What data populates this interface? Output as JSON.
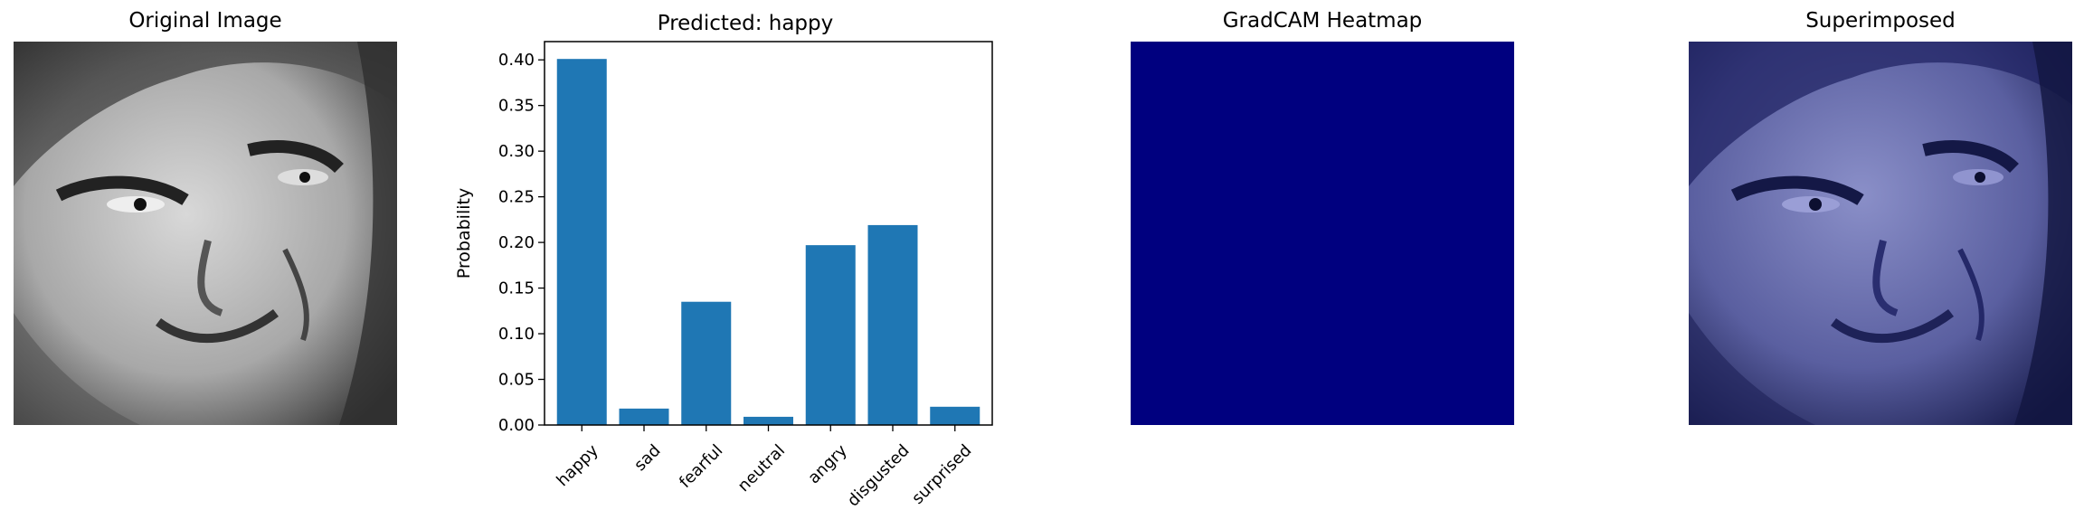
{
  "panels": {
    "original": {
      "title": "Original Image"
    },
    "heatmap": {
      "title": "GradCAM Heatmap",
      "color": "#00007f"
    },
    "superimposed": {
      "title": "Superimposed",
      "tint": "#2a2f8a"
    }
  },
  "chart_data": {
    "type": "bar",
    "title": "Predicted: happy",
    "xlabel": "",
    "ylabel": "Probability",
    "categories": [
      "happy",
      "sad",
      "fearful",
      "neutral",
      "angry",
      "disgusted",
      "surprised"
    ],
    "values": [
      0.401,
      0.018,
      0.135,
      0.009,
      0.197,
      0.219,
      0.02
    ],
    "ylim": [
      0,
      0.42
    ],
    "yticks": [
      "0.00",
      "0.05",
      "0.10",
      "0.15",
      "0.20",
      "0.25",
      "0.30",
      "0.35",
      "0.40"
    ],
    "bar_color": "#1f77b4",
    "grid": false
  }
}
